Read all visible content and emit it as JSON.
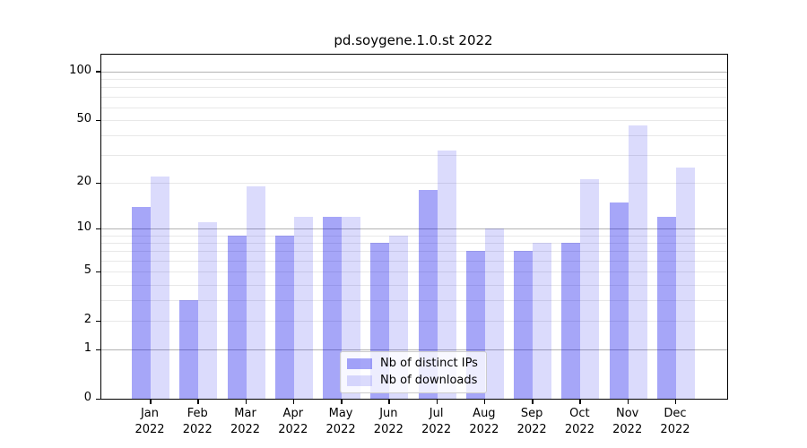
{
  "chart_data": {
    "type": "bar",
    "title": "pd.soygene.1.0.st 2022",
    "categories": [
      "Jan 2022",
      "Feb 2022",
      "Mar 2022",
      "Apr 2022",
      "May 2022",
      "Jun 2022",
      "Jul 2022",
      "Aug 2022",
      "Sep 2022",
      "Oct 2022",
      "Nov 2022",
      "Dec 2022"
    ],
    "series": [
      {
        "name": "Nb of distinct IPs",
        "color": "#0000eb59",
        "values": [
          14,
          3,
          9,
          9,
          12,
          8,
          18,
          7,
          7,
          8,
          15,
          12
        ]
      },
      {
        "name": "Nb of downloads",
        "color": "#0000eb24",
        "values": [
          22,
          11,
          19,
          12,
          12,
          9,
          32,
          10,
          8,
          21,
          46,
          25
        ]
      }
    ],
    "xlabel": "",
    "ylabel": "",
    "yscale": "log1p",
    "ylim": [
      0,
      127
    ],
    "yticks": [
      100,
      50,
      20,
      10,
      5,
      2,
      1,
      0
    ],
    "grid": "horizontal major+minor",
    "grid_major_color": "#b3b3b3",
    "grid_minor_color": "#e8e8e8",
    "legend_position": "lower center inside plot"
  }
}
